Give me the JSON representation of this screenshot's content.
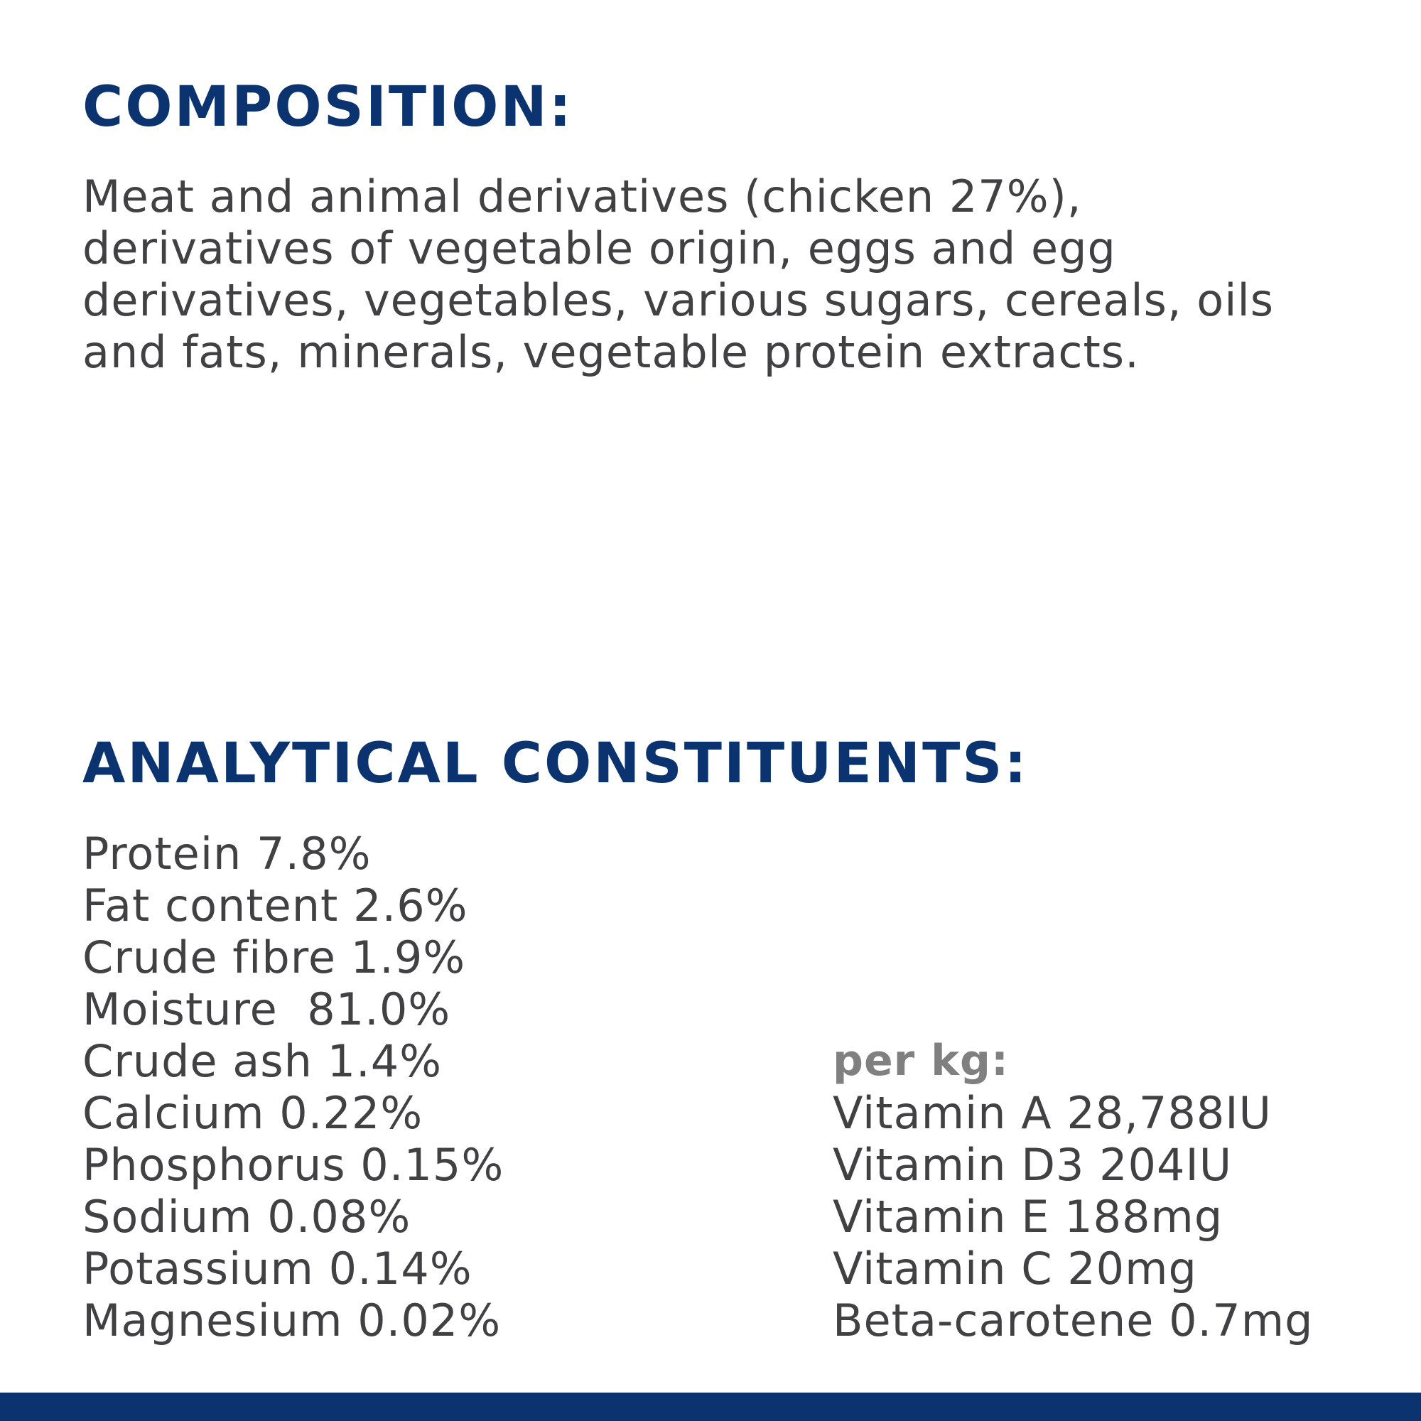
{
  "composition": {
    "heading": "COMPOSITION:",
    "lines": [
      "Meat and animal derivatives (chicken 27%),",
      "derivatives of vegetable origin, eggs and egg",
      "derivatives, vegetables, various sugars, cereals, oils",
      "and fats, minerals, vegetable protein extracts."
    ]
  },
  "analytical": {
    "heading": "ANALYTICAL CONSTITUENTS:",
    "constituents": [
      "Protein 7.8%",
      "Fat content 2.6%",
      "Crude fibre 1.9%",
      "Moisture  81.0%",
      "Crude ash 1.4%",
      "Calcium 0.22%",
      "Phosphorus 0.15%",
      "Sodium 0.08%",
      "Potassium 0.14%",
      "Magnesium 0.02%"
    ],
    "per_kg_label": "per kg:",
    "vitamins": [
      "Vitamin A 28,788IU",
      "Vitamin D3 204IU",
      "Vitamin E 188mg",
      "Vitamin C 20mg",
      "Beta-carotene 0.7mg"
    ]
  },
  "colors": {
    "heading": "#0a3370",
    "body_text": "#414042",
    "per_kg_label": "#808080",
    "bottom_bar": "#0a3370",
    "background": "#ffffff"
  }
}
